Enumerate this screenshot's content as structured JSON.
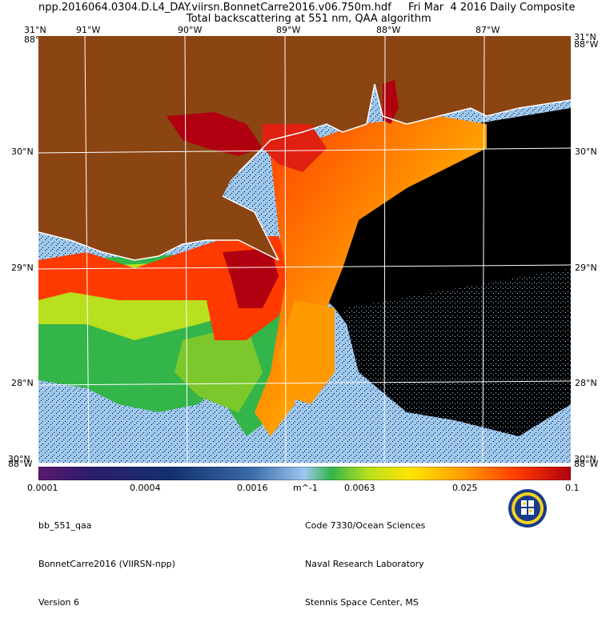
{
  "header": {
    "filename": "npp.2016064.0304.D.L4_DAY.viirsn.BonnetCarre2016.v06.750m.hdf",
    "date": "Fri Mar  4 2016 Daily Composite",
    "product": "Total backscattering at 551 nm, QAA algorithm"
  },
  "map": {
    "top_lon_labels": [
      "91°W",
      "90°W",
      "89°W",
      "88°W",
      "87°W"
    ],
    "lat_labels": [
      "30°N",
      "29°N",
      "28°N"
    ],
    "corner_labels": {
      "top_left_lat": "31°N",
      "top_left_lon": "88°W",
      "top_right_lat": "31°N",
      "top_right_lon": "88°W",
      "bottom_left_lat": "30°N",
      "bottom_left_lon": "88°W",
      "bottom_right_lat": "30°N",
      "bottom_right_lon": "88°W"
    },
    "colors": {
      "land": "#8b4513",
      "no_data": "#000000",
      "coast": "#ffffff",
      "grid": "#ffffff"
    }
  },
  "colorbar": {
    "ticks": [
      "0.0001",
      "0.0004",
      "0.0016",
      "0.0063",
      "0.025",
      "0.1"
    ],
    "unit": "m^-1",
    "colors": [
      "#5a1870",
      "#2c1d6b",
      "#14306e",
      "#3a6aa8",
      "#9ec8ef",
      "#33b54a",
      "#b8e01e",
      "#ffe400",
      "#ff9a00",
      "#ff3a00",
      "#b00010"
    ]
  },
  "footer": {
    "left": [
      "bb_551_qaa",
      "BonnetCarre2016 (VIIRSN-npp)",
      "Version 6"
    ],
    "right": [
      "Code 7330/Ocean Sciences",
      "Naval Research Laboratory",
      "Stennis Space Center, MS"
    ]
  }
}
